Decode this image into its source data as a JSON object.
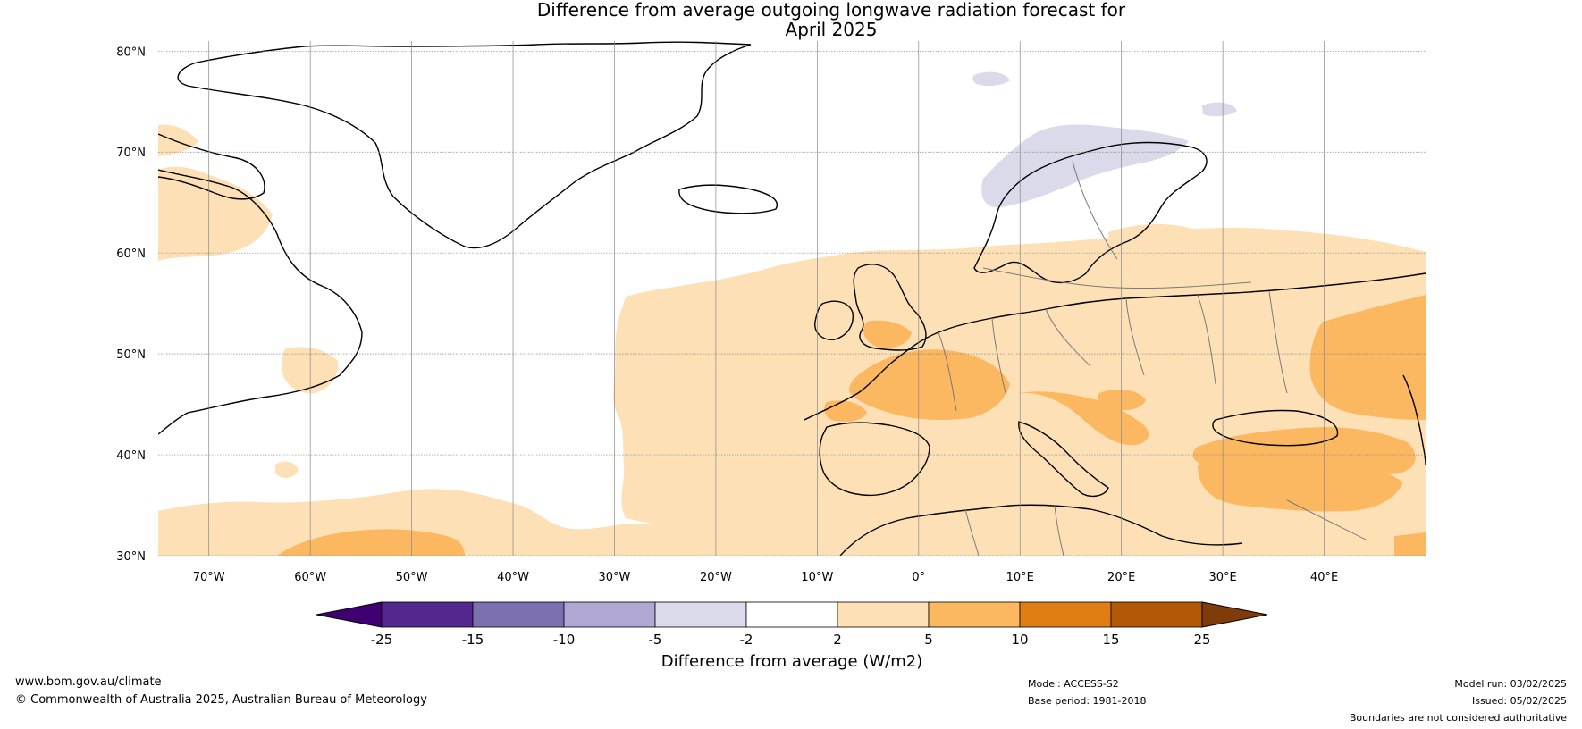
{
  "title": {
    "line1": "Difference from average outgoing longwave radiation forecast for",
    "line2": "April 2025"
  },
  "map": {
    "lat_labels": [
      "80°N",
      "70°N",
      "60°N",
      "50°N",
      "40°N",
      "30°N"
    ],
    "lon_labels": [
      "70°W",
      "60°W",
      "50°W",
      "40°W",
      "30°W",
      "20°W",
      "10°W",
      "0°",
      "10°E",
      "20°E",
      "30°E",
      "40°E"
    ]
  },
  "colorbar": {
    "ticks": [
      "-25",
      "-15",
      "-10",
      "-5",
      "-2",
      "2",
      "5",
      "10",
      "15",
      "25"
    ],
    "colors": [
      "#3f0071",
      "#54278f",
      "#7e6fb0",
      "#b0a8d3",
      "#dadaeb",
      "#ffffff",
      "#fde0b5",
      "#fbb860",
      "#e07e14",
      "#b35806",
      "#7f3b08"
    ],
    "label": "Difference from average (W/m2)"
  },
  "legend_colors": {
    "pale_orange": "#fde0b5",
    "orange": "#fbb860",
    "pale_purple": "#dadaeb"
  },
  "footer": {
    "website": "www.bom.gov.au/climate",
    "copyright": "© Commonwealth of Australia 2025, Australian Bureau of Meteorology",
    "model": "Model: ACCESS-S2",
    "base_period": "Base period: 1981-2018",
    "model_run": "Model run: 03/02/2025",
    "issued": "Issued: 05/02/2025",
    "disclaimer": "Boundaries are not considered authoritative"
  }
}
